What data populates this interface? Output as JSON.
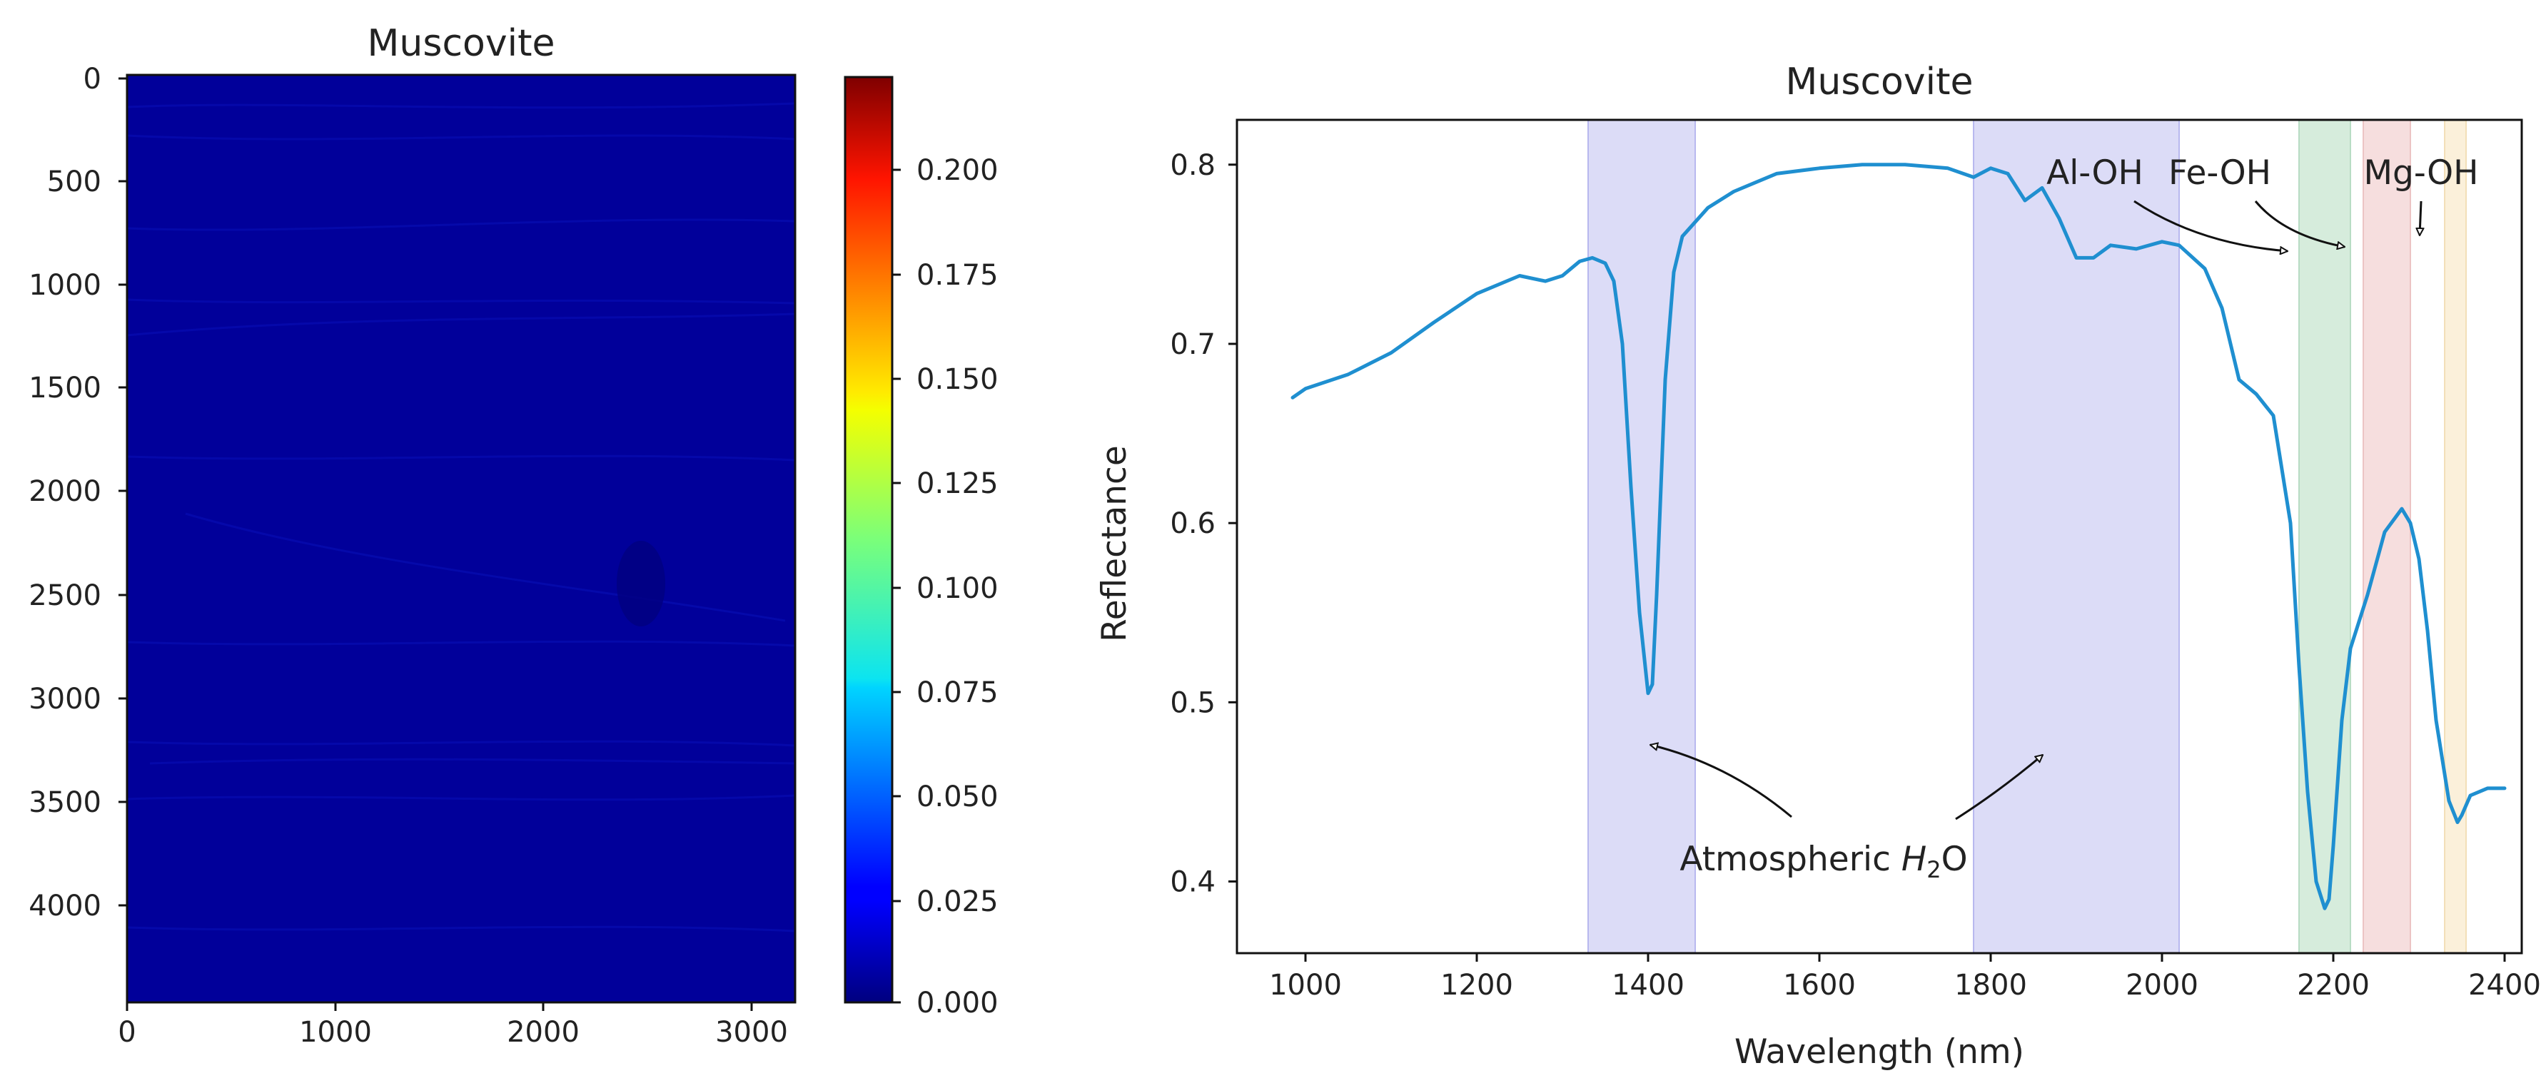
{
  "chart_data": [
    {
      "type": "heatmap",
      "title": "Muscovite",
      "colormap": "jet",
      "xlim": [
        0,
        3230
      ],
      "ylim": [
        4480,
        0
      ],
      "x_ticks": [
        "0",
        "1000",
        "2000",
        "3000"
      ],
      "y_ticks": [
        "0",
        "500",
        "1000",
        "1500",
        "2000",
        "2500",
        "3000",
        "3500",
        "4000"
      ],
      "colorbar": {
        "range": [
          0,
          0.22
        ],
        "ticks": [
          "0.000",
          "0.025",
          "0.050",
          "0.075",
          "0.100",
          "0.125",
          "0.150",
          "0.175",
          "0.200"
        ]
      },
      "dominant_value": 0.0
    },
    {
      "type": "line",
      "title": "Muscovite",
      "xlabel": "Wavelength (nm)",
      "ylabel": "Reflectance",
      "xlim": [
        920,
        2420
      ],
      "ylim": [
        0.36,
        0.825
      ],
      "x_ticks": [
        "1000",
        "1200",
        "1400",
        "1600",
        "1800",
        "2000",
        "2200",
        "2400"
      ],
      "y_ticks": [
        "0.4",
        "0.5",
        "0.6",
        "0.7",
        "0.8"
      ],
      "series": [
        {
          "name": "Reflectance",
          "color": "#1f8fd0",
          "x": [
            985,
            1000,
            1050,
            1100,
            1150,
            1200,
            1250,
            1280,
            1300,
            1320,
            1335,
            1350,
            1360,
            1370,
            1380,
            1390,
            1400,
            1405,
            1410,
            1420,
            1430,
            1440,
            1455,
            1470,
            1500,
            1550,
            1600,
            1650,
            1700,
            1750,
            1780,
            1800,
            1820,
            1840,
            1860,
            1880,
            1900,
            1920,
            1940,
            1970,
            2000,
            2020,
            2050,
            2070,
            2090,
            2110,
            2130,
            2150,
            2160,
            2170,
            2180,
            2190,
            2195,
            2200,
            2210,
            2220,
            2240,
            2260,
            2280,
            2290,
            2300,
            2310,
            2320,
            2335,
            2345,
            2350,
            2360,
            2380,
            2400
          ],
          "y": [
            0.67,
            0.675,
            0.683,
            0.695,
            0.712,
            0.728,
            0.738,
            0.735,
            0.738,
            0.746,
            0.748,
            0.745,
            0.735,
            0.7,
            0.62,
            0.55,
            0.505,
            0.51,
            0.56,
            0.68,
            0.74,
            0.76,
            0.768,
            0.776,
            0.785,
            0.795,
            0.798,
            0.8,
            0.8,
            0.798,
            0.793,
            0.798,
            0.795,
            0.78,
            0.787,
            0.77,
            0.748,
            0.748,
            0.755,
            0.753,
            0.757,
            0.755,
            0.742,
            0.72,
            0.68,
            0.672,
            0.66,
            0.6,
            0.52,
            0.45,
            0.4,
            0.385,
            0.39,
            0.42,
            0.49,
            0.53,
            0.56,
            0.595,
            0.608,
            0.6,
            0.58,
            0.54,
            0.49,
            0.445,
            0.433,
            0.437,
            0.448,
            0.452,
            0.452
          ]
        }
      ],
      "bands": [
        {
          "x0": 1330,
          "x1": 1455,
          "color": "#dcdcf7",
          "edge": "#b8b8ef"
        },
        {
          "x0": 1780,
          "x1": 2020,
          "color": "#dcdcf7",
          "edge": "#b8b8ef"
        },
        {
          "x0": 2160,
          "x1": 2220,
          "color": "#d6ecdc",
          "edge": "#b8dcc4"
        },
        {
          "x0": 2235,
          "x1": 2290,
          "color": "#f6dede",
          "edge": "#ecc4c4"
        },
        {
          "x0": 2330,
          "x1": 2355,
          "color": "#fbf0da",
          "edge": "#f2dfb8"
        }
      ],
      "annotations": {
        "al_oh": "Al-OH",
        "fe_oh": "Fe-OH",
        "mg_oh": "Mg-OH",
        "atmospheric_prefix": "Atmospheric ",
        "atmospheric_h": "H",
        "atmospheric_sub": "2",
        "atmospheric_suffix": "O"
      }
    }
  ]
}
